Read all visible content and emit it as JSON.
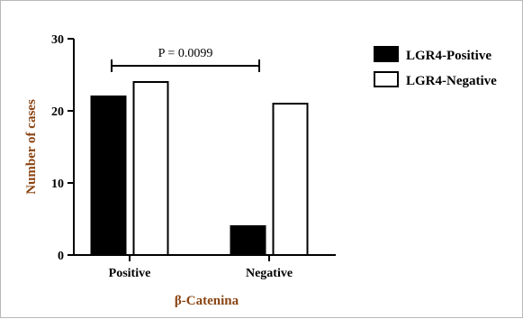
{
  "chart_data": {
    "type": "bar",
    "categories": [
      "Positive",
      "Negative"
    ],
    "series": [
      {
        "name": "LGR4-Positive",
        "values": [
          22,
          4
        ],
        "fill": "#000000"
      },
      {
        "name": "LGR4-Negative",
        "values": [
          24,
          21
        ],
        "fill": "#ffffff"
      }
    ],
    "xlabel": "β-Catenina",
    "ylabel": "Number of cases",
    "ylim": [
      0,
      30
    ],
    "yticks": [
      "0",
      "10",
      "20",
      "30"
    ],
    "grid": false,
    "legend_position": "top-right",
    "annotation": {
      "text": "P = 0.0099",
      "between": "Positive group to Negative group"
    }
  },
  "colors": {
    "axis_title": "#8b4513",
    "bar_stroke": "#000000",
    "frame": "#b8b8b8"
  }
}
